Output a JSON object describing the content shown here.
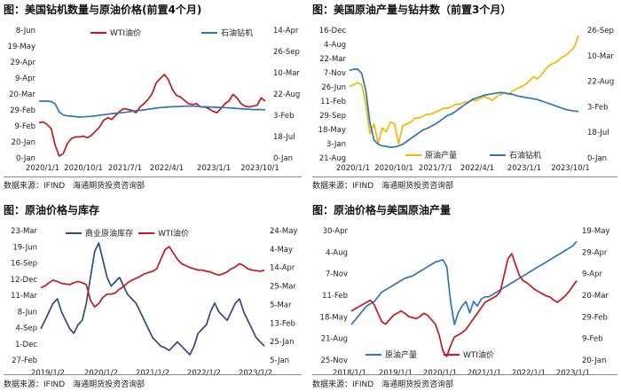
{
  "source_text": "数据来源：IFIND　海通期货投资咨询部",
  "colors": {
    "red": "#c8161d",
    "blue": "#2e75b6",
    "yellow": "#f5b800",
    "navy": "#2f4a85"
  },
  "chart_data": [
    {
      "id": "p1",
      "type": "line",
      "title": "图：美国钻机数量与原油价格(前置4个月)",
      "x_ticks": [
        "2020/1/1",
        "2020/10/1",
        "2021/7/1",
        "2022/4/1",
        "2023/1/1",
        "2023/10/1"
      ],
      "left_ticks": [
        "8-Jun",
        "19-May",
        "29-Apr",
        "9-Apr",
        "20-Mar",
        "29-Feb",
        "9-Feb",
        "20-Jan",
        "0-Jan"
      ],
      "right_ticks": [
        "14-Apr",
        "26-Sep",
        "10-Mar",
        "22-Aug",
        "3-Feb",
        "18-Jul",
        "0-Jan"
      ],
      "series": [
        {
          "name": "WTI油价",
          "color": "red",
          "values": [
            57,
            58,
            55,
            50,
            30,
            17,
            20,
            32,
            38,
            40,
            40,
            41,
            39,
            42,
            47,
            52,
            60,
            63,
            61,
            66,
            71,
            74,
            73,
            72,
            69,
            76,
            80,
            85,
            92,
            105,
            110,
            115,
            109,
            97,
            90,
            88,
            84,
            80,
            79,
            80,
            76,
            76,
            74,
            71,
            69,
            74,
            80,
            83,
            91,
            87,
            80,
            77,
            76,
            77,
            78,
            87,
            83
          ]
        },
        {
          "name": "石油钻机",
          "color": "blue",
          "values": [
            790,
            794,
            795,
            780,
            700,
            420,
            310,
            280,
            270,
            255,
            240,
            245,
            260,
            265,
            280,
            305,
            320,
            340,
            360,
            375,
            385,
            400,
            420,
            440,
            460,
            470,
            490,
            510,
            530,
            550,
            570,
            580,
            590,
            600,
            605,
            610,
            620,
            623,
            620,
            615,
            605,
            600,
            590,
            585,
            580,
            575,
            570,
            560,
            550,
            540,
            530,
            520,
            510,
            500,
            505,
            500,
            495
          ]
        }
      ]
    },
    {
      "id": "p2",
      "type": "line",
      "title": "图：美国原油产量与钻井数（前置3个月）",
      "x_ticks": [
        "2020/1/1",
        "2020/10/1",
        "2021/7/1",
        "2022/4/1",
        "2023/1/1",
        "2023/10/1"
      ],
      "left_ticks": [
        "16-Dec",
        "4-Aug",
        "22-Mar",
        "7-Nov",
        "26-Jun",
        "11-Feb",
        "29-Sep",
        "18-May",
        "3-Jan",
        "21-Aug"
      ],
      "right_ticks": [
        "26-Sep",
        "10-Mar",
        "22-Aug",
        "3-Feb",
        "18-Jul",
        "0-Jan"
      ],
      "series": [
        {
          "name": "原油产量",
          "color": "yellow",
          "values": [
            1290,
            1300,
            1310,
            1300,
            1200,
            1050,
            1100,
            1000,
            1080,
            1060,
            1110,
            1100,
            1000,
            1090,
            1100,
            1110,
            1130,
            1130,
            1140,
            1150,
            1150,
            1160,
            1170,
            1180,
            1180,
            1190,
            1200,
            1200,
            1210,
            1210,
            1220,
            1220,
            1230,
            1240,
            1230,
            1220,
            1240,
            1250,
            1260,
            1250,
            1270,
            1280,
            1290,
            1300,
            1320,
            1340,
            1330,
            1350,
            1380,
            1400,
            1410,
            1420,
            1440,
            1450,
            1470,
            1490,
            1550
          ]
        },
        {
          "name": "石油钻机",
          "color": "blue",
          "values": [
            780,
            790,
            790,
            760,
            640,
            420,
            300,
            270,
            260,
            255,
            250,
            252,
            260,
            270,
            290,
            310,
            330,
            350,
            370,
            380,
            395,
            410,
            430,
            450,
            470,
            480,
            500,
            520,
            540,
            560,
            580,
            590,
            600,
            610,
            615,
            620,
            625,
            628,
            625,
            620,
            615,
            605,
            600,
            595,
            590,
            585,
            580,
            570,
            560,
            550,
            540,
            530,
            520,
            510,
            505,
            500,
            498
          ]
        }
      ]
    },
    {
      "id": "p3",
      "type": "line",
      "title": "图：原油价格与库存",
      "x_ticks": [
        "2019/1/2",
        "2020/1/2",
        "2021/1/2",
        "2022/1/2",
        "2023/1/2"
      ],
      "left_ticks": [
        "23-Mar",
        "19-Jun",
        "16-Sep",
        "12-Dec",
        "11-Mar",
        "8-Jun",
        "4-Sep",
        "1-Dec",
        "27-Feb"
      ],
      "right_ticks": [
        "24-May",
        "4-May",
        "14-Apr",
        "25-Mar",
        "5-Mar",
        "13-Feb",
        "25-Jan",
        "5-Jan"
      ],
      "series": [
        {
          "name": "商业原油库存",
          "color": "navy",
          "values": [
            440,
            450,
            460,
            470,
            475,
            460,
            450,
            440,
            435,
            445,
            450,
            470,
            500,
            530,
            540,
            520,
            500,
            490,
            495,
            500,
            490,
            480,
            475,
            470,
            460,
            450,
            440,
            430,
            425,
            420,
            418,
            415,
            420,
            425,
            420,
            415,
            410,
            420,
            435,
            440,
            445,
            460,
            470,
            460,
            455,
            450,
            460,
            470,
            475,
            460,
            450,
            440,
            430,
            425,
            420
          ]
        },
        {
          "name": "WTI油价",
          "color": "red",
          "values": [
            50,
            53,
            58,
            62,
            60,
            57,
            56,
            55,
            58,
            60,
            58,
            55,
            30,
            20,
            25,
            35,
            40,
            40,
            42,
            48,
            52,
            58,
            62,
            65,
            68,
            72,
            74,
            76,
            80,
            95,
            110,
            115,
            105,
            95,
            88,
            85,
            82,
            80,
            78,
            78,
            76,
            75,
            72,
            70,
            72,
            75,
            80,
            83,
            88,
            85,
            80,
            78,
            77,
            76,
            78
          ]
        }
      ]
    },
    {
      "id": "p4",
      "type": "line",
      "title": "图：原油价格与美国原油产量",
      "x_ticks": [
        "2018/1/1",
        "2019/1/1",
        "2020/1/1",
        "2021/1/1",
        "2022/1/1",
        "2023/1/1"
      ],
      "left_ticks": [
        "30-Apr",
        "4-Aug",
        "7-Nov",
        "11-Feb",
        "18-May",
        "21-Aug",
        "25-Nov"
      ],
      "right_ticks": [
        "19-May",
        "29-Apr",
        "9-Apr",
        "20-Mar",
        "29-Feb",
        "9-Feb",
        "20-Jan"
      ],
      "series": [
        {
          "name": "原油产量",
          "color": "blue",
          "values": [
            1000,
            1020,
            1040,
            1060,
            1080,
            1090,
            1100,
            1120,
            1140,
            1150,
            1160,
            1170,
            1180,
            1190,
            1200,
            1205,
            1210,
            1220,
            1230,
            1240,
            1250,
            1260,
            1270,
            1275,
            1280,
            1250,
            1100,
            1000,
            1050,
            1080,
            1100,
            1050,
            1100,
            1080,
            1110,
            1120,
            1120,
            1130,
            1140,
            1150,
            1160,
            1170,
            1180,
            1190,
            1200,
            1210,
            1220,
            1230,
            1240,
            1250,
            1260,
            1270,
            1280,
            1290,
            1300,
            1310,
            1320,
            1330,
            1340,
            1360
          ]
        },
        {
          "name": "WTI油价",
          "color": "red",
          "values": [
            62,
            64,
            66,
            68,
            70,
            72,
            68,
            60,
            52,
            50,
            54,
            58,
            60,
            62,
            60,
            57,
            56,
            55,
            57,
            60,
            58,
            54,
            50,
            40,
            25,
            20,
            30,
            38,
            40,
            42,
            45,
            50,
            55,
            60,
            65,
            70,
            72,
            74,
            76,
            80,
            95,
            110,
            115,
            105,
            95,
            90,
            88,
            85,
            82,
            80,
            78,
            76,
            75,
            72,
            70,
            73,
            76,
            80,
            85,
            90
          ]
        }
      ]
    }
  ]
}
